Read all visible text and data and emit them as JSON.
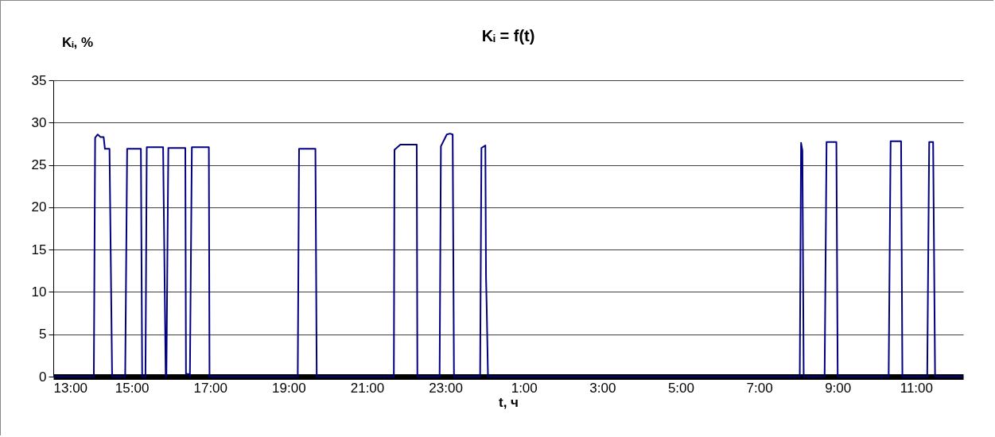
{
  "chart_data": {
    "type": "line",
    "title": "Kᵢ = f(t)",
    "xlabel": "t, ч",
    "ylabel": "Kᵢ, %",
    "xlim": [
      "2000-01-01T13:00",
      "2000-01-02T12:12"
    ],
    "ylim": [
      0,
      35
    ],
    "xticks": [
      {
        "value": "2000-01-01T13:00",
        "label": "13:00"
      },
      {
        "value": "2000-01-01T15:00",
        "label": "15:00"
      },
      {
        "value": "2000-01-01T17:00",
        "label": "17:00"
      },
      {
        "value": "2000-01-01T19:00",
        "label": "19:00"
      },
      {
        "value": "2000-01-01T21:00",
        "label": "21:00"
      },
      {
        "value": "2000-01-01T23:00",
        "label": "23:00"
      },
      {
        "value": "2000-01-02T01:00",
        "label": "1:00"
      },
      {
        "value": "2000-01-02T03:00",
        "label": "3:00"
      },
      {
        "value": "2000-01-02T05:00",
        "label": "5:00"
      },
      {
        "value": "2000-01-02T07:00",
        "label": "7:00"
      },
      {
        "value": "2000-01-02T09:00",
        "label": "9:00"
      },
      {
        "value": "2000-01-02T11:00",
        "label": "11:00"
      }
    ],
    "yticks": [
      0,
      5,
      10,
      15,
      20,
      25,
      30,
      35
    ],
    "grid": "y",
    "marker": "none",
    "line_style": "solid",
    "series": [
      {
        "color": "#000080",
        "x": [
          "2000-01-01T13:00",
          "2000-01-01T14:02",
          "2000-01-01T14:04",
          "2000-01-01T14:08",
          "2000-01-01T14:12",
          "2000-01-01T14:17",
          "2000-01-01T14:19",
          "2000-01-01T14:26",
          "2000-01-01T14:30",
          "2000-01-01T14:50",
          "2000-01-01T14:53",
          "2000-01-01T15:14",
          "2000-01-01T15:16",
          "2000-01-01T15:21",
          "2000-01-01T15:23",
          "2000-01-01T15:48",
          "2000-01-01T15:52",
          "2000-01-01T15:53",
          "2000-01-01T15:56",
          "2000-01-01T16:22",
          "2000-01-01T16:23",
          "2000-01-01T16:27",
          "2000-01-01T16:29",
          "2000-01-01T16:32",
          "2000-01-01T16:58",
          "2000-01-01T16:59",
          "2000-01-01T19:14",
          "2000-01-01T19:16",
          "2000-01-01T19:41",
          "2000-01-01T19:43",
          "2000-01-01T21:41",
          "2000-01-01T21:42",
          "2000-01-01T21:51",
          "2000-01-01T22:16",
          "2000-01-01T22:17",
          "2000-01-01T22:51",
          "2000-01-01T22:53",
          "2000-01-01T23:02",
          "2000-01-01T23:07",
          "2000-01-01T23:11",
          "2000-01-01T23:13",
          "2000-01-01T23:53",
          "2000-01-01T23:55",
          "2000-01-02T00:01",
          "2000-01-02T00:02",
          "2000-01-02T00:03",
          "2000-01-02T00:05",
          "2000-01-02T08:02",
          "2000-01-02T08:04",
          "2000-01-02T08:06",
          "2000-01-02T08:08",
          "2000-01-02T08:40",
          "2000-01-02T08:43",
          "2000-01-02T08:58",
          "2000-01-02T09:00",
          "2000-01-02T10:18",
          "2000-01-02T10:21",
          "2000-01-02T10:37",
          "2000-01-02T10:39",
          "2000-01-02T11:17",
          "2000-01-02T11:20",
          "2000-01-02T11:26",
          "2000-01-02T11:29",
          "2000-01-02T12:12"
        ],
        "values": [
          0,
          0,
          28.2,
          28.6,
          28.3,
          28.3,
          26.9,
          26.9,
          0,
          0,
          26.9,
          26.9,
          0,
          0,
          27.1,
          27.1,
          0,
          0,
          27.0,
          27.0,
          0.3,
          0.3,
          0,
          27.1,
          27.1,
          0,
          0,
          26.9,
          26.9,
          0,
          0,
          26.8,
          27.4,
          27.4,
          0,
          0,
          27.2,
          28.6,
          28.7,
          28.6,
          0,
          0,
          27.0,
          27.3,
          11.8,
          8.4,
          0,
          0,
          27.6,
          26.7,
          0,
          0,
          27.7,
          27.7,
          0,
          0,
          27.8,
          27.8,
          0,
          0,
          27.7,
          27.7,
          0,
          0
        ]
      }
    ]
  }
}
